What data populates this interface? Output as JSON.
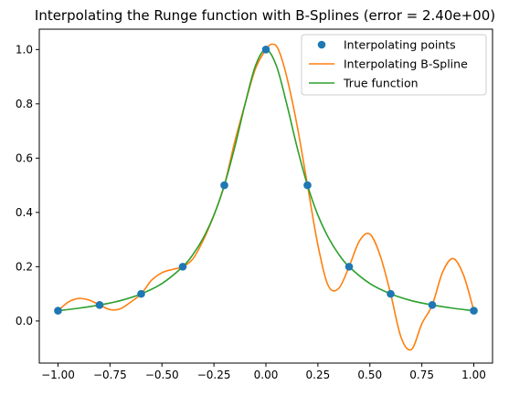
{
  "chart_data": {
    "type": "line",
    "title": "Interpolating the Runge function with B-Splines (error = 2.40e+00)",
    "xlabel": "",
    "ylabel": "",
    "xlim": [
      -1.09,
      1.09
    ],
    "ylim": [
      -0.155,
      1.075
    ],
    "xticks": [
      -1.0,
      -0.75,
      -0.5,
      -0.25,
      0.0,
      0.25,
      0.5,
      0.75,
      1.0
    ],
    "xtick_labels": [
      "−1.00",
      "−0.75",
      "−0.50",
      "−0.25",
      "0.00",
      "0.25",
      "0.50",
      "0.75",
      "1.00"
    ],
    "yticks": [
      0.0,
      0.2,
      0.4,
      0.6,
      0.8,
      1.0
    ],
    "ytick_labels": [
      "0.0",
      "0.2",
      "0.4",
      "0.6",
      "0.8",
      "1.0"
    ],
    "grid": false,
    "legend_position": "top-right",
    "series": [
      {
        "name": "Interpolating points",
        "kind": "markers",
        "color": "#1f77b4",
        "x": [
          -1.0,
          -0.8,
          -0.6,
          -0.4,
          -0.2,
          0.0,
          0.2,
          0.4,
          0.6,
          0.8,
          1.0
        ],
        "y": [
          0.038,
          0.059,
          0.1,
          0.2,
          0.5,
          1.0,
          0.5,
          0.2,
          0.1,
          0.059,
          0.038
        ]
      },
      {
        "name": "Interpolating B-Spline",
        "kind": "line",
        "color": "#ff7f0e",
        "x": [
          -1.0,
          -0.95,
          -0.9,
          -0.85,
          -0.8,
          -0.75,
          -0.7,
          -0.65,
          -0.6,
          -0.55,
          -0.5,
          -0.45,
          -0.4,
          -0.35,
          -0.3,
          -0.25,
          -0.2,
          -0.15,
          -0.1,
          -0.05,
          0.0,
          0.03,
          0.06,
          0.1,
          0.15,
          0.2,
          0.25,
          0.3,
          0.35,
          0.4,
          0.45,
          0.5,
          0.55,
          0.6,
          0.65,
          0.7,
          0.75,
          0.8,
          0.85,
          0.9,
          0.95,
          1.0
        ],
        "y": [
          0.038,
          0.07,
          0.083,
          0.077,
          0.059,
          0.042,
          0.045,
          0.07,
          0.1,
          0.15,
          0.178,
          0.19,
          0.2,
          0.23,
          0.3,
          0.39,
          0.5,
          0.66,
          0.8,
          0.93,
          1.0,
          1.02,
          1.0,
          0.9,
          0.72,
          0.5,
          0.28,
          0.13,
          0.12,
          0.2,
          0.295,
          0.32,
          0.24,
          0.1,
          -0.06,
          -0.105,
          -0.01,
          0.059,
          0.18,
          0.23,
          0.17,
          0.038
        ]
      },
      {
        "name": "True function",
        "kind": "line",
        "color": "#2ca02c",
        "x": [
          -1.0,
          -0.9,
          -0.8,
          -0.7,
          -0.6,
          -0.5,
          -0.4,
          -0.35,
          -0.3,
          -0.25,
          -0.2,
          -0.15,
          -0.1,
          -0.05,
          0.0,
          0.05,
          0.1,
          0.15,
          0.2,
          0.25,
          0.3,
          0.35,
          0.4,
          0.5,
          0.6,
          0.7,
          0.8,
          0.9,
          1.0
        ],
        "y": [
          0.038,
          0.047,
          0.059,
          0.075,
          0.1,
          0.138,
          0.2,
          0.246,
          0.308,
          0.39,
          0.5,
          0.64,
          0.8,
          0.941,
          1.0,
          0.941,
          0.8,
          0.64,
          0.5,
          0.39,
          0.308,
          0.246,
          0.2,
          0.138,
          0.1,
          0.075,
          0.059,
          0.047,
          0.038
        ]
      }
    ]
  }
}
